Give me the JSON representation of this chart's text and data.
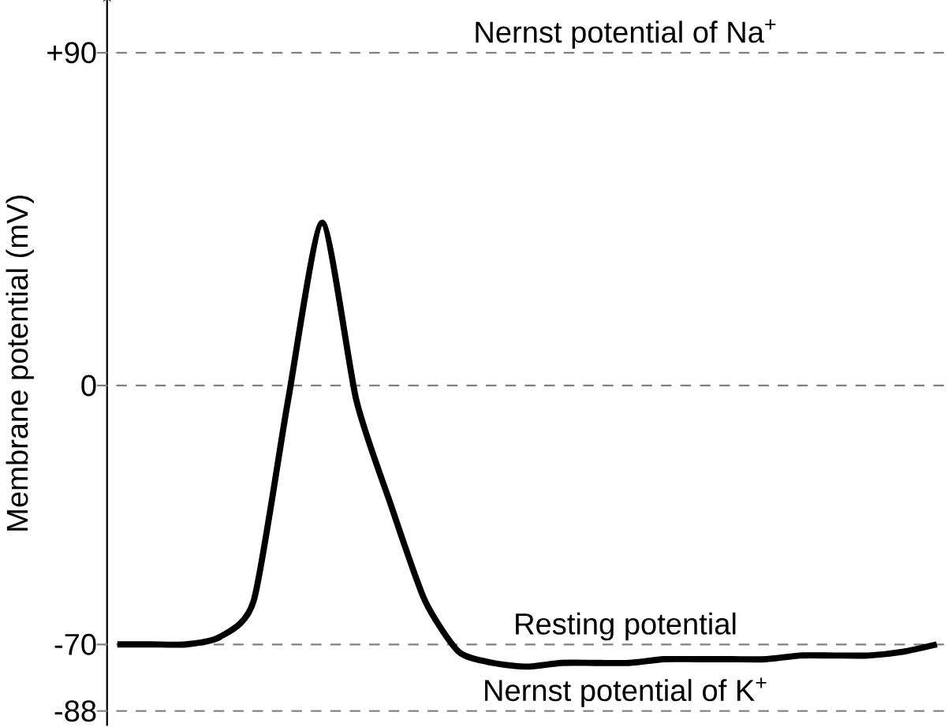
{
  "chart_data": {
    "type": "line",
    "ylabel": "Membrane potential (mV)",
    "categories": [
      null,
      null,
      null,
      null,
      null,
      null,
      null,
      null,
      null,
      null,
      null,
      null,
      null,
      null,
      null,
      null,
      null,
      null,
      null,
      null,
      null,
      null,
      null,
      null,
      null
    ],
    "series": [
      {
        "color": "#000000",
        "values": [
          -70,
          -70,
          -70,
          -68,
          -58,
          -4,
          44,
          -4,
          -32,
          -58,
          -72,
          -75,
          -76,
          -75,
          -75,
          -75,
          -74,
          -74,
          -74,
          -74,
          -73,
          -73,
          -73,
          -72,
          -70
        ]
      }
    ],
    "ylim": [
      -92,
      104
    ],
    "yticks": [
      {
        "value": 90,
        "label": "+90"
      },
      0,
      -70,
      -88
    ],
    "ref_lines": [
      {
        "axis": "y",
        "value": 90,
        "label": "Nernst potential of Na$^{+}$",
        "color": "#808080",
        "line_style": "dashed"
      },
      {
        "axis": "y",
        "value": 0,
        "color": "#808080",
        "line_style": "dashed"
      },
      {
        "axis": "y",
        "value": -70,
        "label": "Resting potential",
        "color": "#808080",
        "line_style": "dashed"
      },
      {
        "axis": "y",
        "value": -88,
        "label": "Nernst potential of K$^{+}$",
        "color": "#808080",
        "line_style": "dashed"
      }
    ],
    "marker": "none",
    "line_style": "solid",
    "grid": false
  }
}
